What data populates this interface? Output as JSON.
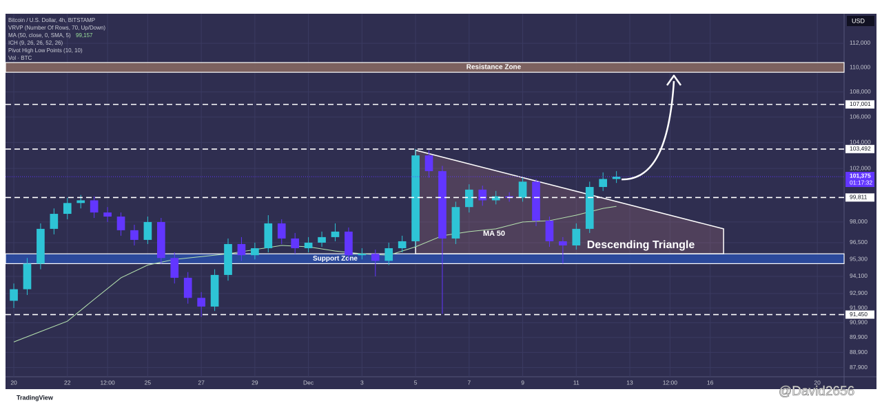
{
  "chart_data": {
    "type": "candlestick",
    "title": "Bitcoin / U.S. Dollar, 4h, BITSTAMP",
    "indicators": [
      "VRVP (Number Of Rows, 70, Up/Down)",
      "MA (50, close, 0, SMA, 5)",
      "ICH (9, 26, 26, 52, 26)",
      "Pivot High Low Points (10, 10)",
      "Vol · BTC"
    ],
    "ma_legend_value": {
      "value": 99157,
      "label": "99,157"
    },
    "currency": "USD",
    "log_scale": true,
    "grid": true,
    "up_color": "#2ec4d6",
    "down_color": "#6236ff",
    "xlim": [
      -0.31,
      31
    ],
    "xticks": [
      {
        "value": 0,
        "label": "20"
      },
      {
        "value": 2,
        "label": "22"
      },
      {
        "value": 3.5,
        "label": "12:00"
      },
      {
        "value": 5,
        "label": "25"
      },
      {
        "value": 7,
        "label": "27"
      },
      {
        "value": 9,
        "label": "29"
      },
      {
        "value": 11,
        "label": "Dec"
      },
      {
        "value": 13,
        "label": "3"
      },
      {
        "value": 15,
        "label": "5"
      },
      {
        "value": 17,
        "label": "7"
      },
      {
        "value": 19,
        "label": "9"
      },
      {
        "value": 21,
        "label": "11"
      },
      {
        "value": 23,
        "label": "13"
      },
      {
        "value": 24.5,
        "label": "12:00"
      },
      {
        "value": 26,
        "label": "16"
      },
      {
        "value": 30,
        "label": "20"
      }
    ],
    "ylim": [
      87300,
      114500
    ],
    "yticks": [
      {
        "value": 112000,
        "label": "112,000"
      },
      {
        "value": 110000,
        "label": "110,000"
      },
      {
        "value": 108000,
        "label": "108,000"
      },
      {
        "value": 106000,
        "label": "106,000"
      },
      {
        "value": 104000,
        "label": "104,000"
      },
      {
        "value": 102000,
        "label": "102,000"
      },
      {
        "value": 98000,
        "label": "98,000"
      },
      {
        "value": 96500,
        "label": "96,500"
      },
      {
        "value": 95300,
        "label": "95,300"
      },
      {
        "value": 94100,
        "label": "94,100"
      },
      {
        "value": 92900,
        "label": "92,900"
      },
      {
        "value": 91900,
        "label": "91,900"
      },
      {
        "value": 90900,
        "label": "90,900"
      },
      {
        "value": 89900,
        "label": "89,900"
      },
      {
        "value": 88900,
        "label": "88,900"
      },
      {
        "value": 87900,
        "label": "87,900"
      }
    ],
    "candles": {
      "x": [
        0,
        0.5,
        1,
        1.5,
        2,
        2.5,
        3,
        3.5,
        4,
        4.5,
        5,
        5.5,
        6,
        6.5,
        7,
        7.5,
        8,
        8.5,
        9,
        9.5,
        10,
        10.5,
        11,
        11.5,
        12,
        12.5,
        13,
        13.5,
        14,
        14.5,
        15,
        15.5,
        16,
        16.5,
        17,
        17.5,
        18,
        18.5,
        19,
        19.5,
        20,
        20.5,
        21,
        21.5,
        22,
        22.5
      ],
      "open": [
        92400,
        93200,
        95000,
        97500,
        98600,
        99400,
        99600,
        98700,
        98400,
        97400,
        96700,
        98000,
        95400,
        94000,
        92600,
        92000,
        94200,
        96400,
        95600,
        96100,
        97900,
        96800,
        96100,
        96500,
        96900,
        97300,
        95600,
        95700,
        95200,
        96100,
        96600,
        103000,
        101800,
        96800,
        99100,
        100400,
        99600,
        99900,
        99800,
        101000,
        98100,
        96600,
        96300,
        97500,
        100600,
        101200
      ],
      "high": [
        93600,
        95400,
        97900,
        99000,
        99800,
        100000,
        99900,
        99100,
        98700,
        97800,
        98400,
        98300,
        95800,
        94400,
        93000,
        94600,
        96800,
        96900,
        96500,
        98500,
        98200,
        97200,
        96900,
        97300,
        97900,
        97600,
        96100,
        96000,
        96500,
        97000,
        103500,
        103400,
        102200,
        99500,
        100800,
        100700,
        100300,
        100200,
        101300,
        101200,
        98400,
        96900,
        97900,
        101000,
        101700,
        101800
      ],
      "low": [
        91900,
        92800,
        94600,
        97100,
        98200,
        99000,
        98300,
        98000,
        97000,
        96300,
        96400,
        95000,
        93600,
        92200,
        91300,
        91700,
        93800,
        95200,
        95300,
        95800,
        96400,
        95700,
        95800,
        96200,
        96600,
        95200,
        95300,
        94100,
        94900,
        95800,
        96200,
        101300,
        91500,
        96400,
        98700,
        99200,
        99300,
        99500,
        99500,
        97700,
        96200,
        95000,
        96000,
        97200,
        100300,
        100900
      ],
      "close": [
        93200,
        95000,
        97500,
        98600,
        99400,
        99600,
        98700,
        98400,
        97400,
        96700,
        98000,
        95400,
        94000,
        92600,
        92000,
        94200,
        96400,
        95600,
        96100,
        97900,
        96800,
        96100,
        96500,
        96900,
        97300,
        95600,
        95700,
        95200,
        96100,
        96600,
        103000,
        101800,
        96800,
        99100,
        100400,
        99600,
        99900,
        99800,
        101000,
        98100,
        96600,
        96300,
        97500,
        100600,
        101200,
        101375
      ]
    },
    "ma": {
      "name": "MA 50",
      "color": "#b7e4b0",
      "x": [
        0,
        1,
        2,
        3,
        4,
        5,
        6,
        7,
        8,
        9,
        10,
        11,
        12,
        13,
        14,
        15,
        16,
        17,
        18,
        19,
        20,
        21,
        22,
        22.5
      ],
      "values": [
        89600,
        90300,
        91000,
        92500,
        94000,
        94900,
        95300,
        95500,
        95700,
        96000,
        96300,
        96200,
        95900,
        95700,
        95600,
        96200,
        97000,
        97300,
        97500,
        98000,
        98100,
        98500,
        99000,
        99157
      ]
    },
    "levels": [
      {
        "value": 107001,
        "label": "107,001"
      },
      {
        "value": 103492,
        "label": "103,492"
      },
      {
        "value": 99811,
        "label": "99,811"
      },
      {
        "value": 91450,
        "label": "91,450"
      }
    ],
    "current_price": {
      "value": 101375,
      "label": "101,375",
      "countdown": "01:17:32"
    },
    "zones": [
      {
        "label": "Resistance Zone",
        "range": [
          109600,
          110400
        ],
        "color": "#8a6a62"
      },
      {
        "label": "Support Zone",
        "range": [
          95000,
          95700
        ],
        "color": "#2a4ea8"
      }
    ],
    "pattern": {
      "label": "Descending Triangle",
      "x": [
        15,
        26.5,
        26.5,
        15
      ],
      "values": [
        103400,
        97500,
        95700,
        95700
      ]
    },
    "footer": "TradingView",
    "watermark": "@David2656"
  }
}
